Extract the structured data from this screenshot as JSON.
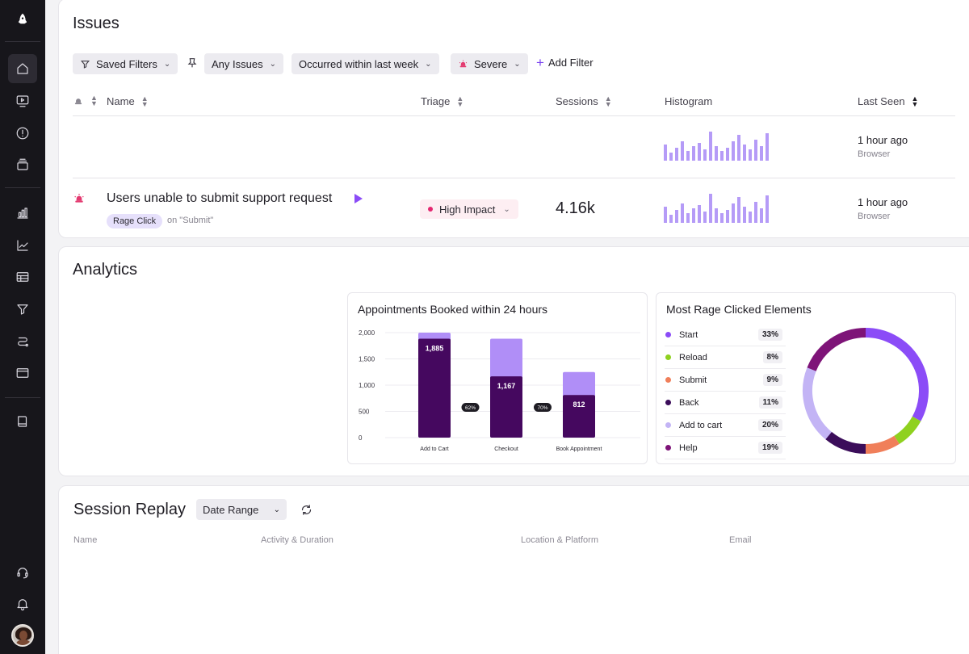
{
  "sidebar": {
    "icons": [
      "rocket-icon",
      "home-icon",
      "replay-icon",
      "alert-icon",
      "stack-icon",
      "bar-chart-icon",
      "line-chart-icon",
      "table-icon",
      "funnel-icon",
      "journey-icon",
      "window-icon",
      "book-icon",
      "headset-icon",
      "bell-icon"
    ]
  },
  "issues": {
    "title": "Issues",
    "filters": {
      "saved": "Saved Filters",
      "any": "Any Issues",
      "occurred": "Occurred within last week",
      "severity": "Severe",
      "add": "Add Filter"
    },
    "columns": {
      "name": "Name",
      "triage": "Triage",
      "sessions": "Sessions",
      "histogram": "Histogram",
      "last_seen": "Last Seen"
    },
    "rows": [
      {
        "name": "",
        "last_seen": "1 hour ago",
        "source": "Browser",
        "histogram": [
          10,
          5,
          8,
          12,
          6,
          9,
          11,
          7,
          18,
          9,
          6,
          8,
          12,
          16,
          10,
          7,
          13,
          9,
          17
        ]
      },
      {
        "name": "Users unable to submit support request",
        "tag": "Rage Click",
        "target": "on \"Submit\"",
        "triage": "High Impact",
        "sessions": "4.16k",
        "last_seen": "1 hour ago",
        "source": "Browser",
        "histogram": [
          10,
          5,
          8,
          12,
          6,
          9,
          11,
          7,
          18,
          9,
          6,
          8,
          12,
          16,
          10,
          7,
          13,
          9,
          17
        ]
      }
    ]
  },
  "analytics": {
    "title": "Analytics",
    "funnel": {
      "title": "Appointments Booked within 24 hours",
      "y_ticks": [
        "2,000",
        "1,500",
        "1,000",
        "500",
        "0"
      ],
      "conversions": [
        "62%",
        "70%"
      ]
    },
    "rage": {
      "title": "Most Rage Clicked Elements",
      "items": [
        {
          "label": "Start",
          "pct": "33%",
          "color": "#8b4cf7"
        },
        {
          "label": "Reload",
          "pct": "8%",
          "color": "#8fd11f"
        },
        {
          "label": "Submit",
          "pct": "9%",
          "color": "#f07f5a"
        },
        {
          "label": "Back",
          "pct": "11%",
          "color": "#3b0d5a"
        },
        {
          "label": "Add to cart",
          "pct": "20%",
          "color": "#c3b4f5"
        },
        {
          "label": "Help",
          "pct": "19%",
          "color": "#7e1478"
        }
      ]
    }
  },
  "chart_data": [
    {
      "type": "bar",
      "title": "Appointments Booked within 24 hours",
      "categories": [
        "Add to Cart",
        "Checkout",
        "Book Appointment"
      ],
      "series": [
        {
          "values": [
            1885,
            1167,
            812
          ]
        },
        {
          "values": [
            2000,
            1885,
            1250
          ]
        }
      ],
      "ylim": [
        0,
        2000
      ],
      "y_ticks": [
        "2,000",
        "1,500",
        "1,000",
        "500",
        "0"
      ]
    },
    {
      "type": "pie",
      "title": "Most Rage Clicked Elements",
      "categories": [
        "Start",
        "Reload",
        "Submit",
        "Back",
        "Add to cart",
        "Help"
      ],
      "values": [
        33,
        8,
        9,
        11,
        20,
        19
      ]
    }
  ],
  "replay": {
    "title": "Session Replay",
    "date_range": "Date Range",
    "columns": [
      "Name",
      "Activity & Duration",
      "Location & Platform",
      "Email"
    ]
  }
}
